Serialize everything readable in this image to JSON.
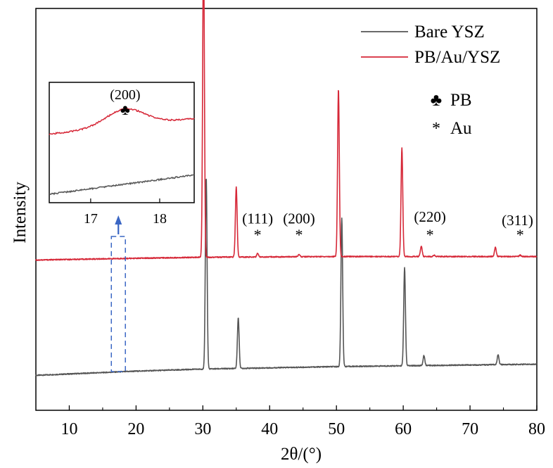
{
  "chart_data": {
    "type": "line",
    "xlabel": "2θ/(°)",
    "ylabel": "Intensity",
    "xlim": [
      5,
      80
    ],
    "ylim": [
      -0.1,
      1.05
    ],
    "xticks": [
      10,
      20,
      30,
      40,
      50,
      60,
      70,
      80
    ],
    "grid": false,
    "legend_position": "top-right",
    "series": [
      {
        "name": "Bare YSZ",
        "color": "#555555",
        "baseline": [
          [
            5,
            0.0
          ],
          [
            20,
            0.012
          ],
          [
            30,
            0.018
          ],
          [
            50,
            0.025
          ],
          [
            80,
            0.032
          ]
        ],
        "peaks": [
          [
            30.5,
            0.55
          ],
          [
            35.3,
            0.145
          ],
          [
            50.8,
            0.425
          ],
          [
            60.2,
            0.28
          ],
          [
            63.1,
            0.028
          ],
          [
            74.2,
            0.028
          ]
        ]
      },
      {
        "name": "PB/Au/YSZ",
        "color": "#d62838",
        "baseline": [
          [
            5,
            0.33
          ],
          [
            20,
            0.335
          ],
          [
            30,
            0.338
          ],
          [
            50,
            0.34
          ],
          [
            80,
            0.34
          ]
        ],
        "peaks": [
          [
            30.1,
            0.9
          ],
          [
            35.0,
            0.2
          ],
          [
            38.2,
            0.01
          ],
          [
            44.4,
            0.007
          ],
          [
            50.3,
            0.48
          ],
          [
            59.8,
            0.31
          ],
          [
            62.7,
            0.03
          ],
          [
            64.6,
            0.004
          ],
          [
            73.8,
            0.027
          ],
          [
            77.5,
            0.004
          ]
        ]
      }
    ],
    "annotations": [
      {
        "text": "(111)",
        "x": 38.2,
        "y": 0.435
      },
      {
        "text": "(200)",
        "x": 44.4,
        "y": 0.435
      },
      {
        "text": "(220)",
        "x": 64.0,
        "y": 0.44
      },
      {
        "text": "(311)",
        "x": 77.1,
        "y": 0.43
      }
    ],
    "markers": [
      {
        "symbol": "*",
        "x": 38.2
      },
      {
        "symbol": "*",
        "x": 44.4
      },
      {
        "symbol": "*",
        "x": 64.0
      },
      {
        "symbol": "*",
        "x": 77.5
      }
    ],
    "symbol_legend": [
      {
        "symbol": "♣",
        "label": "PB"
      },
      {
        "symbol": "*",
        "label": "Au"
      }
    ],
    "inset": {
      "xlim": [
        16.4,
        18.5
      ],
      "xticks": [
        17,
        18
      ],
      "ylim": [
        0,
        1
      ],
      "label": "(200)",
      "symbol": "♣",
      "peak_x": 17.5,
      "series": [
        {
          "name": "PB/Au/YSZ",
          "color": "#d62838",
          "baseline": [
            [
              16.4,
              0.57
            ],
            [
              18.5,
              0.7
            ]
          ],
          "peak": [
            17.5,
            0.14,
            0.28
          ]
        },
        {
          "name": "Bare YSZ",
          "color": "#555555",
          "baseline": [
            [
              16.4,
              0.07
            ],
            [
              18.5,
              0.23
            ]
          ]
        }
      ]
    },
    "highlight_region": {
      "x_range": [
        16.3,
        18.4
      ],
      "color": "#3a66c4"
    }
  }
}
